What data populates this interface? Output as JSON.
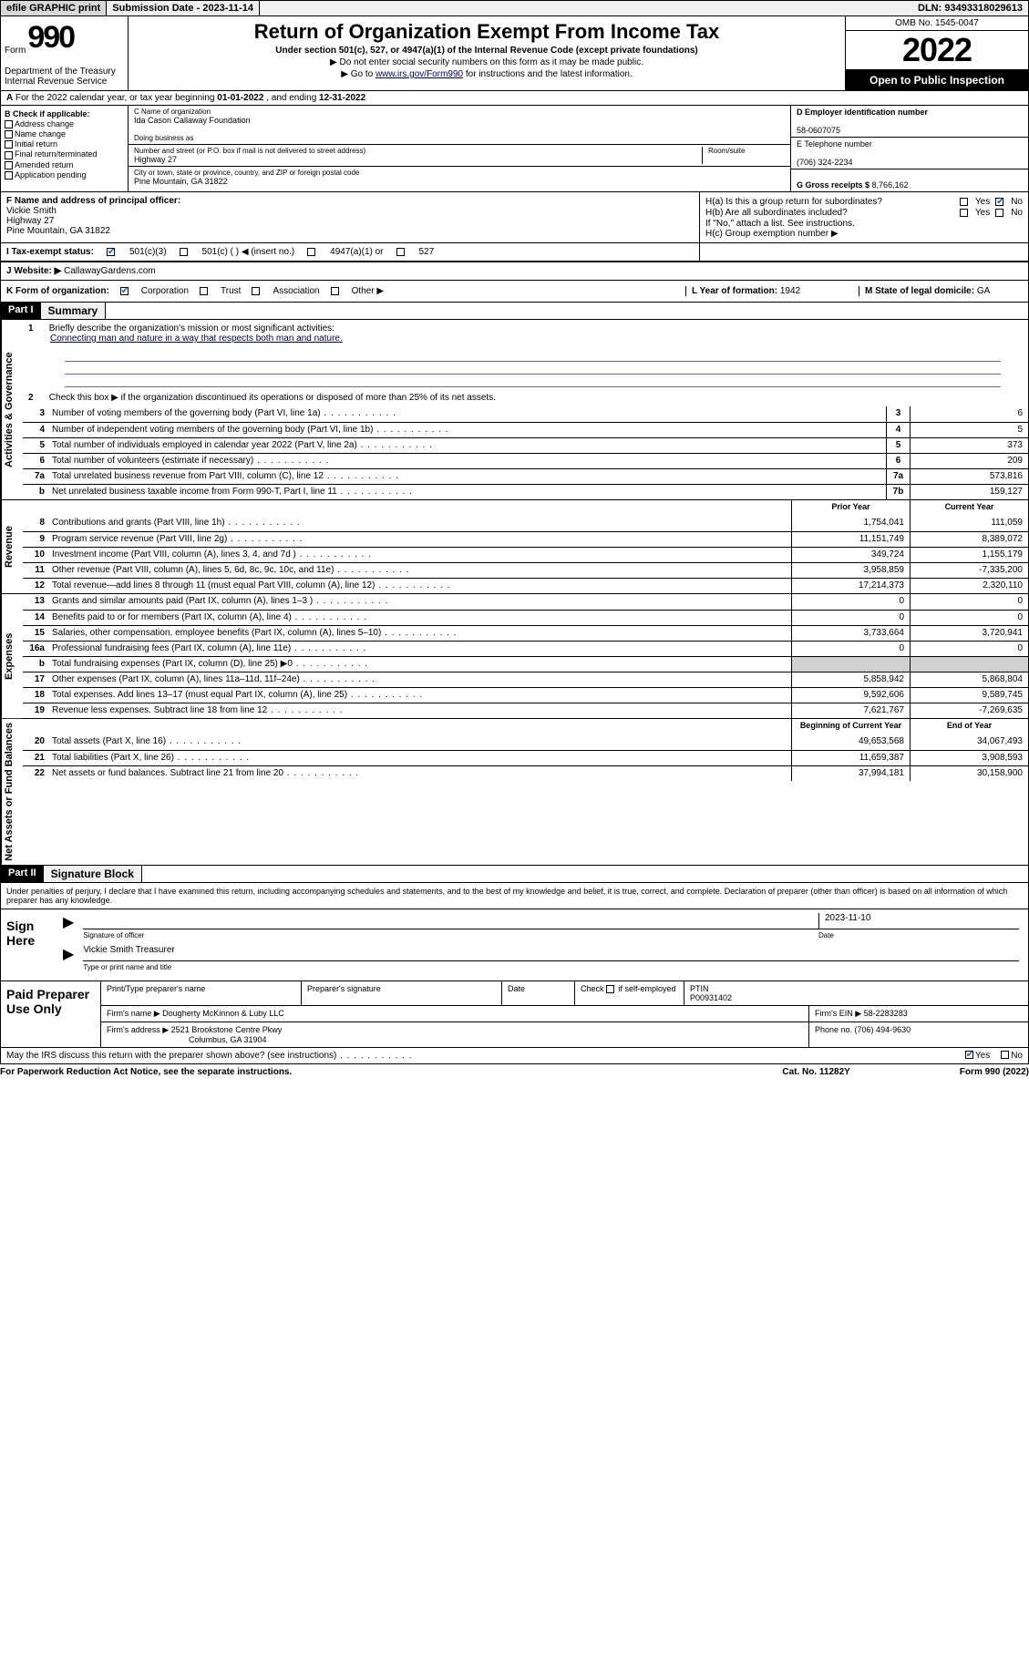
{
  "topbar": {
    "efile": "efile GRAPHIC print",
    "submission_label": "Submission Date - ",
    "submission_date": "2023-11-14",
    "dln_label": "DLN: ",
    "dln": "93493318029613"
  },
  "header": {
    "form_word": "Form",
    "form_num": "990",
    "dept": "Department of the Treasury\nInternal Revenue Service",
    "title": "Return of Organization Exempt From Income Tax",
    "subtitle": "Under section 501(c), 527, or 4947(a)(1) of the Internal Revenue Code (except private foundations)",
    "instr1": "▶ Do not enter social security numbers on this form as it may be made public.",
    "instr2_pre": "▶ Go to ",
    "instr2_link": "www.irs.gov/Form990",
    "instr2_post": " for instructions and the latest information.",
    "omb": "OMB No. 1545-0047",
    "year": "2022",
    "open": "Open to Public Inspection"
  },
  "row_a": {
    "label": "A",
    "text1": "For the 2022 calendar year, or tax year beginning ",
    "begin": "01-01-2022",
    "text2": " , and ending ",
    "end": "12-31-2022"
  },
  "col_b": {
    "label": "B Check if applicable:",
    "items": [
      "Address change",
      "Name change",
      "Initial return",
      "Final return/terminated",
      "Amended return",
      "Application pending"
    ]
  },
  "col_c": {
    "name_label": "C Name of organization",
    "name": "Ida Cason Callaway Foundation",
    "dba_label": "Doing business as",
    "dba": "",
    "addr_label": "Number and street (or P.O. box if mail is not delivered to street address)",
    "room_label": "Room/suite",
    "addr": "Highway 27",
    "city_label": "City or town, state or province, country, and ZIP or foreign postal code",
    "city": "Pine Mountain, GA  31822"
  },
  "col_d": {
    "ein_label": "D Employer identification number",
    "ein": "58-0607075",
    "phone_label": "E Telephone number",
    "phone": "(706) 324-2234",
    "gross_label": "G Gross receipts $ ",
    "gross": "8,766,162"
  },
  "row_f": {
    "label": "F  Name and address of principal officer:",
    "name": "Vickie Smith",
    "addr1": "Highway 27",
    "addr2": "Pine Mountain, GA  31822"
  },
  "row_h": {
    "a_label": "H(a)  Is this a group return for subordinates?",
    "a_yes": "Yes",
    "a_no": "No",
    "b_label": "H(b)  Are all subordinates included?",
    "b_yes": "Yes",
    "b_no": "No",
    "b_note": "If \"No,\" attach a list. See instructions.",
    "c_label": "H(c)  Group exemption number ▶"
  },
  "row_i": {
    "label": "I   Tax-exempt status:",
    "opt1": "501(c)(3)",
    "opt2": "501(c) (  ) ◀ (insert no.)",
    "opt3": "4947(a)(1) or",
    "opt4": "527"
  },
  "row_j": {
    "label": "J   Website: ▶",
    "value": "CallawayGardens.com"
  },
  "row_k": {
    "label": "K Form of organization:",
    "opts": [
      "Corporation",
      "Trust",
      "Association",
      "Other ▶"
    ],
    "l_label": "L Year of formation: ",
    "l_val": "1942",
    "m_label": "M State of legal domicile: ",
    "m_val": "GA"
  },
  "part1": {
    "hdr": "Part I",
    "title": "Summary"
  },
  "governance": {
    "side": "Activities & Governance",
    "l1_label": "1",
    "l1_text": "Briefly describe the organization's mission or most significant activities:",
    "l1_mission": "Connecting man and nature in a way that respects both man and nature.",
    "l2_label": "2",
    "l2_text": "Check this box ▶        if the organization discontinued its operations or disposed of more than 25% of its net assets.",
    "rows": [
      {
        "n": "3",
        "t": "Number of voting members of the governing body (Part VI, line 1a)",
        "box": "3",
        "v": "6"
      },
      {
        "n": "4",
        "t": "Number of independent voting members of the governing body (Part VI, line 1b)",
        "box": "4",
        "v": "5"
      },
      {
        "n": "5",
        "t": "Total number of individuals employed in calendar year 2022 (Part V, line 2a)",
        "box": "5",
        "v": "373"
      },
      {
        "n": "6",
        "t": "Total number of volunteers (estimate if necessary)",
        "box": "6",
        "v": "209"
      },
      {
        "n": "7a",
        "t": "Total unrelated business revenue from Part VIII, column (C), line 12",
        "box": "7a",
        "v": "573,816"
      },
      {
        "n": "b",
        "t": "Net unrelated business taxable income from Form 990-T, Part I, line 11",
        "box": "7b",
        "v": "159,127"
      }
    ]
  },
  "twocol_hdr": {
    "prior": "Prior Year",
    "current": "Current Year"
  },
  "revenue": {
    "side": "Revenue",
    "rows": [
      {
        "n": "8",
        "t": "Contributions and grants (Part VIII, line 1h)",
        "p": "1,754,041",
        "c": "111,059"
      },
      {
        "n": "9",
        "t": "Program service revenue (Part VIII, line 2g)",
        "p": "11,151,749",
        "c": "8,389,072"
      },
      {
        "n": "10",
        "t": "Investment income (Part VIII, column (A), lines 3, 4, and 7d )",
        "p": "349,724",
        "c": "1,155,179"
      },
      {
        "n": "11",
        "t": "Other revenue (Part VIII, column (A), lines 5, 6d, 8c, 9c, 10c, and 11e)",
        "p": "3,958,859",
        "c": "-7,335,200"
      },
      {
        "n": "12",
        "t": "Total revenue—add lines 8 through 11 (must equal Part VIII, column (A), line 12)",
        "p": "17,214,373",
        "c": "2,320,110"
      }
    ]
  },
  "expenses": {
    "side": "Expenses",
    "rows": [
      {
        "n": "13",
        "t": "Grants and similar amounts paid (Part IX, column (A), lines 1–3 )",
        "p": "0",
        "c": "0"
      },
      {
        "n": "14",
        "t": "Benefits paid to or for members (Part IX, column (A), line 4)",
        "p": "0",
        "c": "0"
      },
      {
        "n": "15",
        "t": "Salaries, other compensation, employee benefits (Part IX, column (A), lines 5–10)",
        "p": "3,733,664",
        "c": "3,720,941"
      },
      {
        "n": "16a",
        "t": "Professional fundraising fees (Part IX, column (A), line 11e)",
        "p": "0",
        "c": "0"
      },
      {
        "n": "b",
        "t": "Total fundraising expenses (Part IX, column (D), line 25) ▶0",
        "p": "",
        "c": "",
        "shade": true
      },
      {
        "n": "17",
        "t": "Other expenses (Part IX, column (A), lines 11a–11d, 11f–24e)",
        "p": "5,858,942",
        "c": "5,868,804"
      },
      {
        "n": "18",
        "t": "Total expenses. Add lines 13–17 (must equal Part IX, column (A), line 25)",
        "p": "9,592,606",
        "c": "9,589,745"
      },
      {
        "n": "19",
        "t": "Revenue less expenses. Subtract line 18 from line 12",
        "p": "7,621,767",
        "c": "-7,269,635"
      }
    ]
  },
  "netassets": {
    "side": "Net Assets or Fund Balances",
    "hdr_begin": "Beginning of Current Year",
    "hdr_end": "End of Year",
    "rows": [
      {
        "n": "20",
        "t": "Total assets (Part X, line 16)",
        "p": "49,653,568",
        "c": "34,067,493"
      },
      {
        "n": "21",
        "t": "Total liabilities (Part X, line 26)",
        "p": "11,659,387",
        "c": "3,908,593"
      },
      {
        "n": "22",
        "t": "Net assets or fund balances. Subtract line 21 from line 20",
        "p": "37,994,181",
        "c": "30,158,900"
      }
    ]
  },
  "part2": {
    "hdr": "Part II",
    "title": "Signature Block"
  },
  "sig": {
    "decl": "Under penalties of perjury, I declare that I have examined this return, including accompanying schedules and statements, and to the best of my knowledge and belief, it is true, correct, and complete. Declaration of preparer (other than officer) is based on all information of which preparer has any knowledge.",
    "sign_here": "Sign Here",
    "sig_officer": "Signature of officer",
    "date_label": "Date",
    "date": "2023-11-10",
    "name_title": "Vickie Smith  Treasurer",
    "name_caption": "Type or print name and title"
  },
  "paid": {
    "label": "Paid Preparer Use Only",
    "h1": "Print/Type preparer's name",
    "h2": "Preparer's signature",
    "h3": "Date",
    "h4": "Check        if self-employed",
    "h5": "PTIN",
    "ptin": "P00931402",
    "firm_name_label": "Firm's name    ▶",
    "firm_name": "Dougherty McKinnon & Luby LLC",
    "firm_ein_label": "Firm's EIN ▶",
    "firm_ein": "58-2283283",
    "firm_addr_label": "Firm's address ▶",
    "firm_addr1": "2521 Brookstone Centre Pkwy",
    "firm_addr2": "Columbus, GA  31904",
    "phone_label": "Phone no. ",
    "phone": "(706) 494-9630"
  },
  "footer": {
    "discuss": "May the IRS discuss this return with the preparer shown above? (see instructions)",
    "yes": "Yes",
    "no": "No",
    "paperwork": "For Paperwork Reduction Act Notice, see the separate instructions.",
    "cat": "Cat. No. 11282Y",
    "form": "Form 990 (2022)"
  }
}
